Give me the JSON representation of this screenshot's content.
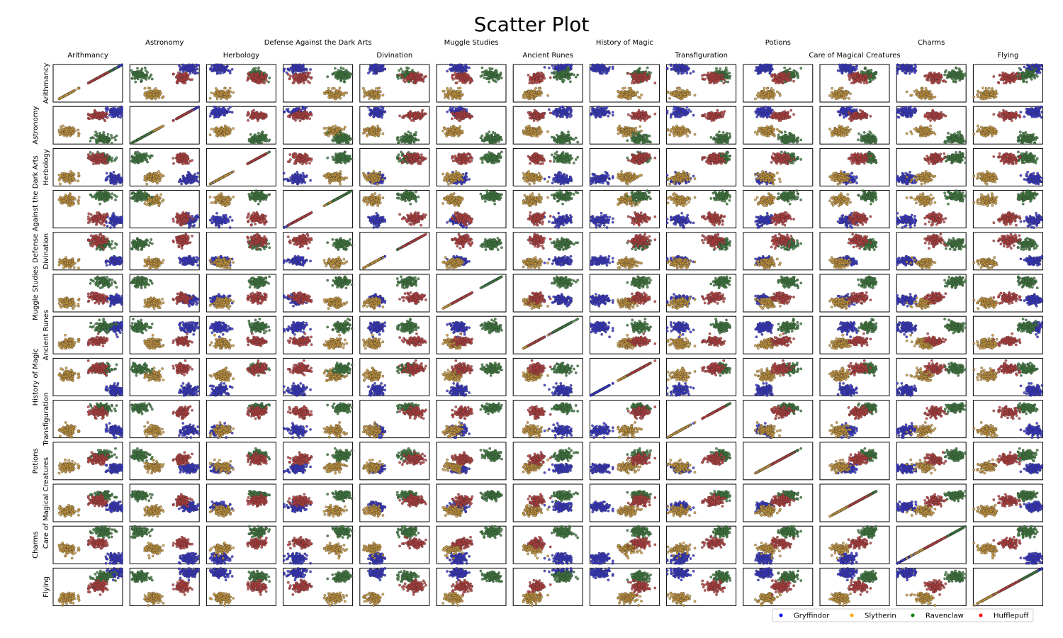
{
  "chart_data": {
    "type": "scatter",
    "title": "Scatter Plot",
    "variables": [
      "Arithmancy",
      "Astronomy",
      "Herbology",
      "Defense Against the Dark Arts",
      "Divination",
      "Muggle Studies",
      "Ancient Runes",
      "History of Magic",
      "Transfiguration",
      "Potions",
      "Care of Magical Creatures",
      "Charms",
      "Flying"
    ],
    "legend": {
      "placement": "bottom-right",
      "entries": [
        {
          "name": "Gryffindor",
          "color": "#0000ff"
        },
        {
          "name": "Slytherin",
          "color": "#ffa500"
        },
        {
          "name": "Ravenclaw",
          "color": "#008000"
        },
        {
          "name": "Hufflepuff",
          "color": "#ff0000"
        }
      ]
    },
    "series": [
      {
        "name": "Gryffindor",
        "color": "#3333cc",
        "means": {
          "Arithmancy": 0.88,
          "Astronomy": 0.85,
          "Herbology": 0.2,
          "Defense Against the Dark Arts": 0.2,
          "Divination": 0.25,
          "Muggle Studies": 0.32,
          "Ancient Runes": 0.7,
          "History of Magic": 0.15,
          "Transfiguration": 0.2,
          "Potions": 0.3,
          "Care of Magical Creatures": 0.4,
          "Charms": 0.15,
          "Flying": 0.85
        }
      },
      {
        "name": "Slytherin",
        "color": "#c8963c",
        "means": {
          "Arithmancy": 0.22,
          "Astronomy": 0.35,
          "Herbology": 0.22,
          "Defense Against the Dark Arts": 0.75,
          "Divination": 0.2,
          "Muggle Studies": 0.25,
          "Ancient Runes": 0.28,
          "History of Magic": 0.55,
          "Transfiguration": 0.2,
          "Potions": 0.35,
          "Care of Magical Creatures": 0.3,
          "Charms": 0.4,
          "Flying": 0.2
        }
      },
      {
        "name": "Ravenclaw",
        "color": "#3c7a3c",
        "means": {
          "Arithmancy": 0.72,
          "Astronomy": 0.15,
          "Herbology": 0.75,
          "Defense Against the Dark Arts": 0.85,
          "Divination": 0.7,
          "Muggle Studies": 0.8,
          "Ancient Runes": 0.72,
          "History of Magic": 0.72,
          "Transfiguration": 0.8,
          "Potions": 0.65,
          "Care of Magical Creatures": 0.7,
          "Charms": 0.85,
          "Flying": 0.78
        }
      },
      {
        "name": "Hufflepuff",
        "color": "#b83c3c",
        "means": {
          "Arithmancy": 0.65,
          "Astronomy": 0.75,
          "Herbology": 0.72,
          "Defense Against the Dark Arts": 0.25,
          "Divination": 0.78,
          "Muggle Studies": 0.38,
          "Ancient Runes": 0.35,
          "History of Magic": 0.72,
          "Transfiguration": 0.68,
          "Potions": 0.55,
          "Care of Magical Creatures": 0.55,
          "Charms": 0.55,
          "Flying": 0.5
        }
      }
    ],
    "grid": false,
    "n_points_per_series": 110
  }
}
